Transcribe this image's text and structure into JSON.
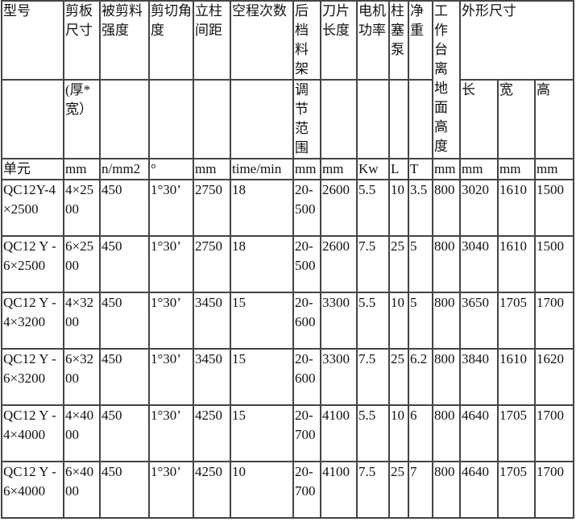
{
  "header_row1": [
    "型号",
    "剪板尺寸",
    "被剪料强度",
    "剪切角度",
    "立柱间距",
    "空程次数",
    "后档料架",
    "刀片长度",
    "电机功率",
    "柱塞泵",
    "净重",
    "工作台离地面高度",
    "外形尺寸"
  ],
  "header_row2": [
    "",
    "(厚*宽）",
    "",
    "",
    "",
    "",
    "调节范围",
    "",
    "",
    "",
    "",
    "长",
    "宽",
    "高"
  ],
  "units": [
    "单元",
    "mm",
    "n/mm2",
    "°",
    "mm",
    "time/min",
    "mm",
    "mm",
    "Kw",
    "L",
    "T",
    "mm",
    "mm",
    "mm",
    "mm"
  ],
  "rows": [
    [
      "QC12Y-4×2500",
      "4×2500",
      "450",
      "1°30’",
      "2750",
      "18",
      "20-500",
      "2600",
      "5.5",
      "10",
      "3.5",
      "800",
      "3020",
      "1610",
      "1500"
    ],
    [
      "QC12 Y -6×2500",
      "6×2500",
      "450",
      "1°30’",
      "2750",
      "18",
      "20-500",
      "2600",
      "7.5",
      "25",
      "5",
      "800",
      "3040",
      "1610",
      "1500"
    ],
    [
      "QC12 Y -4×3200",
      "4×3200",
      "450",
      "1°30’",
      "3450",
      "15",
      "20-600",
      "3300",
      "5.5",
      "10",
      "5",
      "800",
      "3650",
      "1705",
      "1700"
    ],
    [
      "QC12 Y -6×3200",
      "6×3200",
      "450",
      "1°30’",
      "3450",
      "15",
      "20-600",
      "3300",
      "7.5",
      "25",
      "6.2",
      "800",
      "3840",
      "1610",
      "1620"
    ],
    [
      "QC12 Y -4×4000",
      "4×4000",
      "450",
      "1°30’",
      "4250",
      "15",
      "20-700",
      "4100",
      "5.5",
      "10",
      "6",
      "800",
      "4640",
      "1705",
      "1700"
    ],
    [
      "QC12 Y -6×4000",
      "6×4000",
      "450",
      "1°30’",
      "4250",
      "10",
      "20-700",
      "4100",
      "7.5",
      "25",
      "7",
      "800",
      "4640",
      "1705",
      "1700"
    ]
  ]
}
